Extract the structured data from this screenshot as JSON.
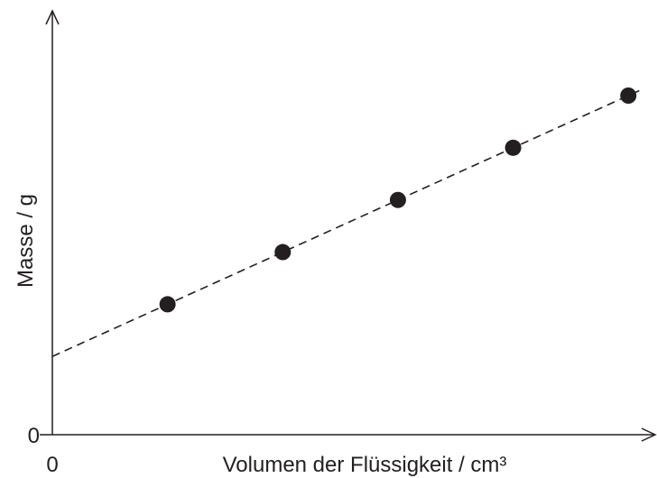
{
  "chart_data": {
    "type": "scatter",
    "xlabel": "Volumen der Flüssigkeit / cm³",
    "ylabel": "Masse / g",
    "x_tick_labels": [
      "0"
    ],
    "y_tick_labels": [
      "0"
    ],
    "points": [
      {
        "x": 1,
        "y": 1.0
      },
      {
        "x": 2,
        "y": 1.4
      },
      {
        "x": 3,
        "y": 1.8
      },
      {
        "x": 4,
        "y": 2.2
      },
      {
        "x": 5,
        "y": 2.6
      }
    ],
    "trendline": {
      "style": "dashed",
      "slope": 0.4,
      "intercept": 0.6
    },
    "xlim": [
      0,
      5.1
    ],
    "ylim": [
      0,
      3.25
    ],
    "grid": false,
    "colors": {
      "ink": "#231f20",
      "background": "#ffffff"
    }
  }
}
